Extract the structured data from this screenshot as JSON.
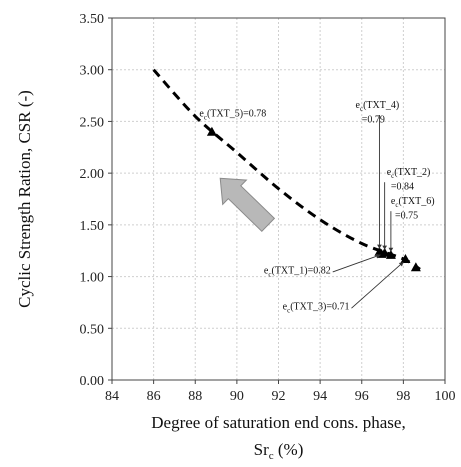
{
  "chart_data": {
    "type": "scatter",
    "title": "",
    "xlabel_line1": "Degree of saturation end cons. phase,",
    "xlabel_line2_base": "Sr",
    "xlabel_line2_sub": "c",
    "xlabel_line2_unit": " (%)",
    "ylabel": "Cyclic Strength Ration, CSR (-)",
    "xlim": [
      84,
      100
    ],
    "ylim": [
      0.0,
      3.5
    ],
    "xticks": [
      "84",
      "86",
      "88",
      "90",
      "92",
      "94",
      "96",
      "98",
      "100"
    ],
    "yticks": [
      "0.00",
      "0.50",
      "1.00",
      "1.50",
      "2.00",
      "2.50",
      "3.00",
      "3.50"
    ],
    "grid": true,
    "marker_color": "#000000",
    "curve_color": "#000000",
    "arrow_color": "#b8b8b8",
    "points": [
      {
        "id": "TXT_5",
        "x": 88.8,
        "y": 2.4
      },
      {
        "id": "TXT_4",
        "x": 96.85,
        "y": 1.24
      },
      {
        "id": "TXT_2",
        "x": 97.1,
        "y": 1.23
      },
      {
        "id": "TXT_6",
        "x": 97.4,
        "y": 1.21
      },
      {
        "id": "TXT_1",
        "x": 96.95,
        "y": 1.22
      },
      {
        "id": "TXT_3",
        "x": 98.1,
        "y": 1.17
      },
      {
        "id": "extra",
        "x": 98.6,
        "y": 1.09
      }
    ],
    "trend_curve": [
      {
        "x": 86.0,
        "y": 3.0
      },
      {
        "x": 88.0,
        "y": 2.55
      },
      {
        "x": 90.0,
        "y": 2.2
      },
      {
        "x": 92.0,
        "y": 1.85
      },
      {
        "x": 94.0,
        "y": 1.55
      },
      {
        "x": 96.0,
        "y": 1.32
      },
      {
        "x": 98.0,
        "y": 1.17
      },
      {
        "x": 98.8,
        "y": 1.07
      }
    ],
    "arrow": {
      "from": {
        "x": 91.5,
        "y": 1.5
      },
      "to": {
        "x": 89.2,
        "y": 1.95
      }
    },
    "annotations": [
      {
        "label": "e",
        "sub": "c",
        "rest": "(TXT_5)=0.78",
        "text": "ec(TXT_5)=0.78",
        "x": 88.2,
        "y": 2.55,
        "target": null
      },
      {
        "label": "e",
        "sub": "c",
        "rest": "(TXT_4)",
        "text": "ec(TXT_4)",
        "x": 95.7,
        "y": 2.63,
        "target": {
          "x": 96.85,
          "y": 1.27
        }
      },
      {
        "label": "",
        "sub": "",
        "rest": "=0.79",
        "text": "=0.79",
        "x": 96.0,
        "y": 2.49,
        "target": null
      },
      {
        "label": "e",
        "sub": "c",
        "rest": "(TXT_2)",
        "text": "ec(TXT_2)",
        "x": 97.2,
        "y": 1.98,
        "target": {
          "x": 97.1,
          "y": 1.26
        }
      },
      {
        "label": "",
        "sub": "",
        "rest": "=0.84",
        "text": "=0.84",
        "x": 97.4,
        "y": 1.84,
        "target": null
      },
      {
        "label": "e",
        "sub": "c",
        "rest": "(TXT_6)",
        "text": "ec(TXT_6)",
        "x": 97.4,
        "y": 1.7,
        "target": {
          "x": 97.4,
          "y": 1.24
        }
      },
      {
        "label": "",
        "sub": "",
        "rest": "=0.75",
        "text": "=0.75",
        "x": 97.6,
        "y": 1.56,
        "target": null
      },
      {
        "label": "e",
        "sub": "c",
        "rest": "(TXT_1)=0.82",
        "text": "ec(TXT_1)=0.82",
        "x": 91.3,
        "y": 1.03,
        "target": {
          "x": 96.9,
          "y": 1.21
        }
      },
      {
        "label": "e",
        "sub": "c",
        "rest": "(TXT_3)=0.71",
        "text": "ec(TXT_3)=0.71",
        "x": 92.2,
        "y": 0.68,
        "target": {
          "x": 98.0,
          "y": 1.14
        }
      }
    ]
  }
}
